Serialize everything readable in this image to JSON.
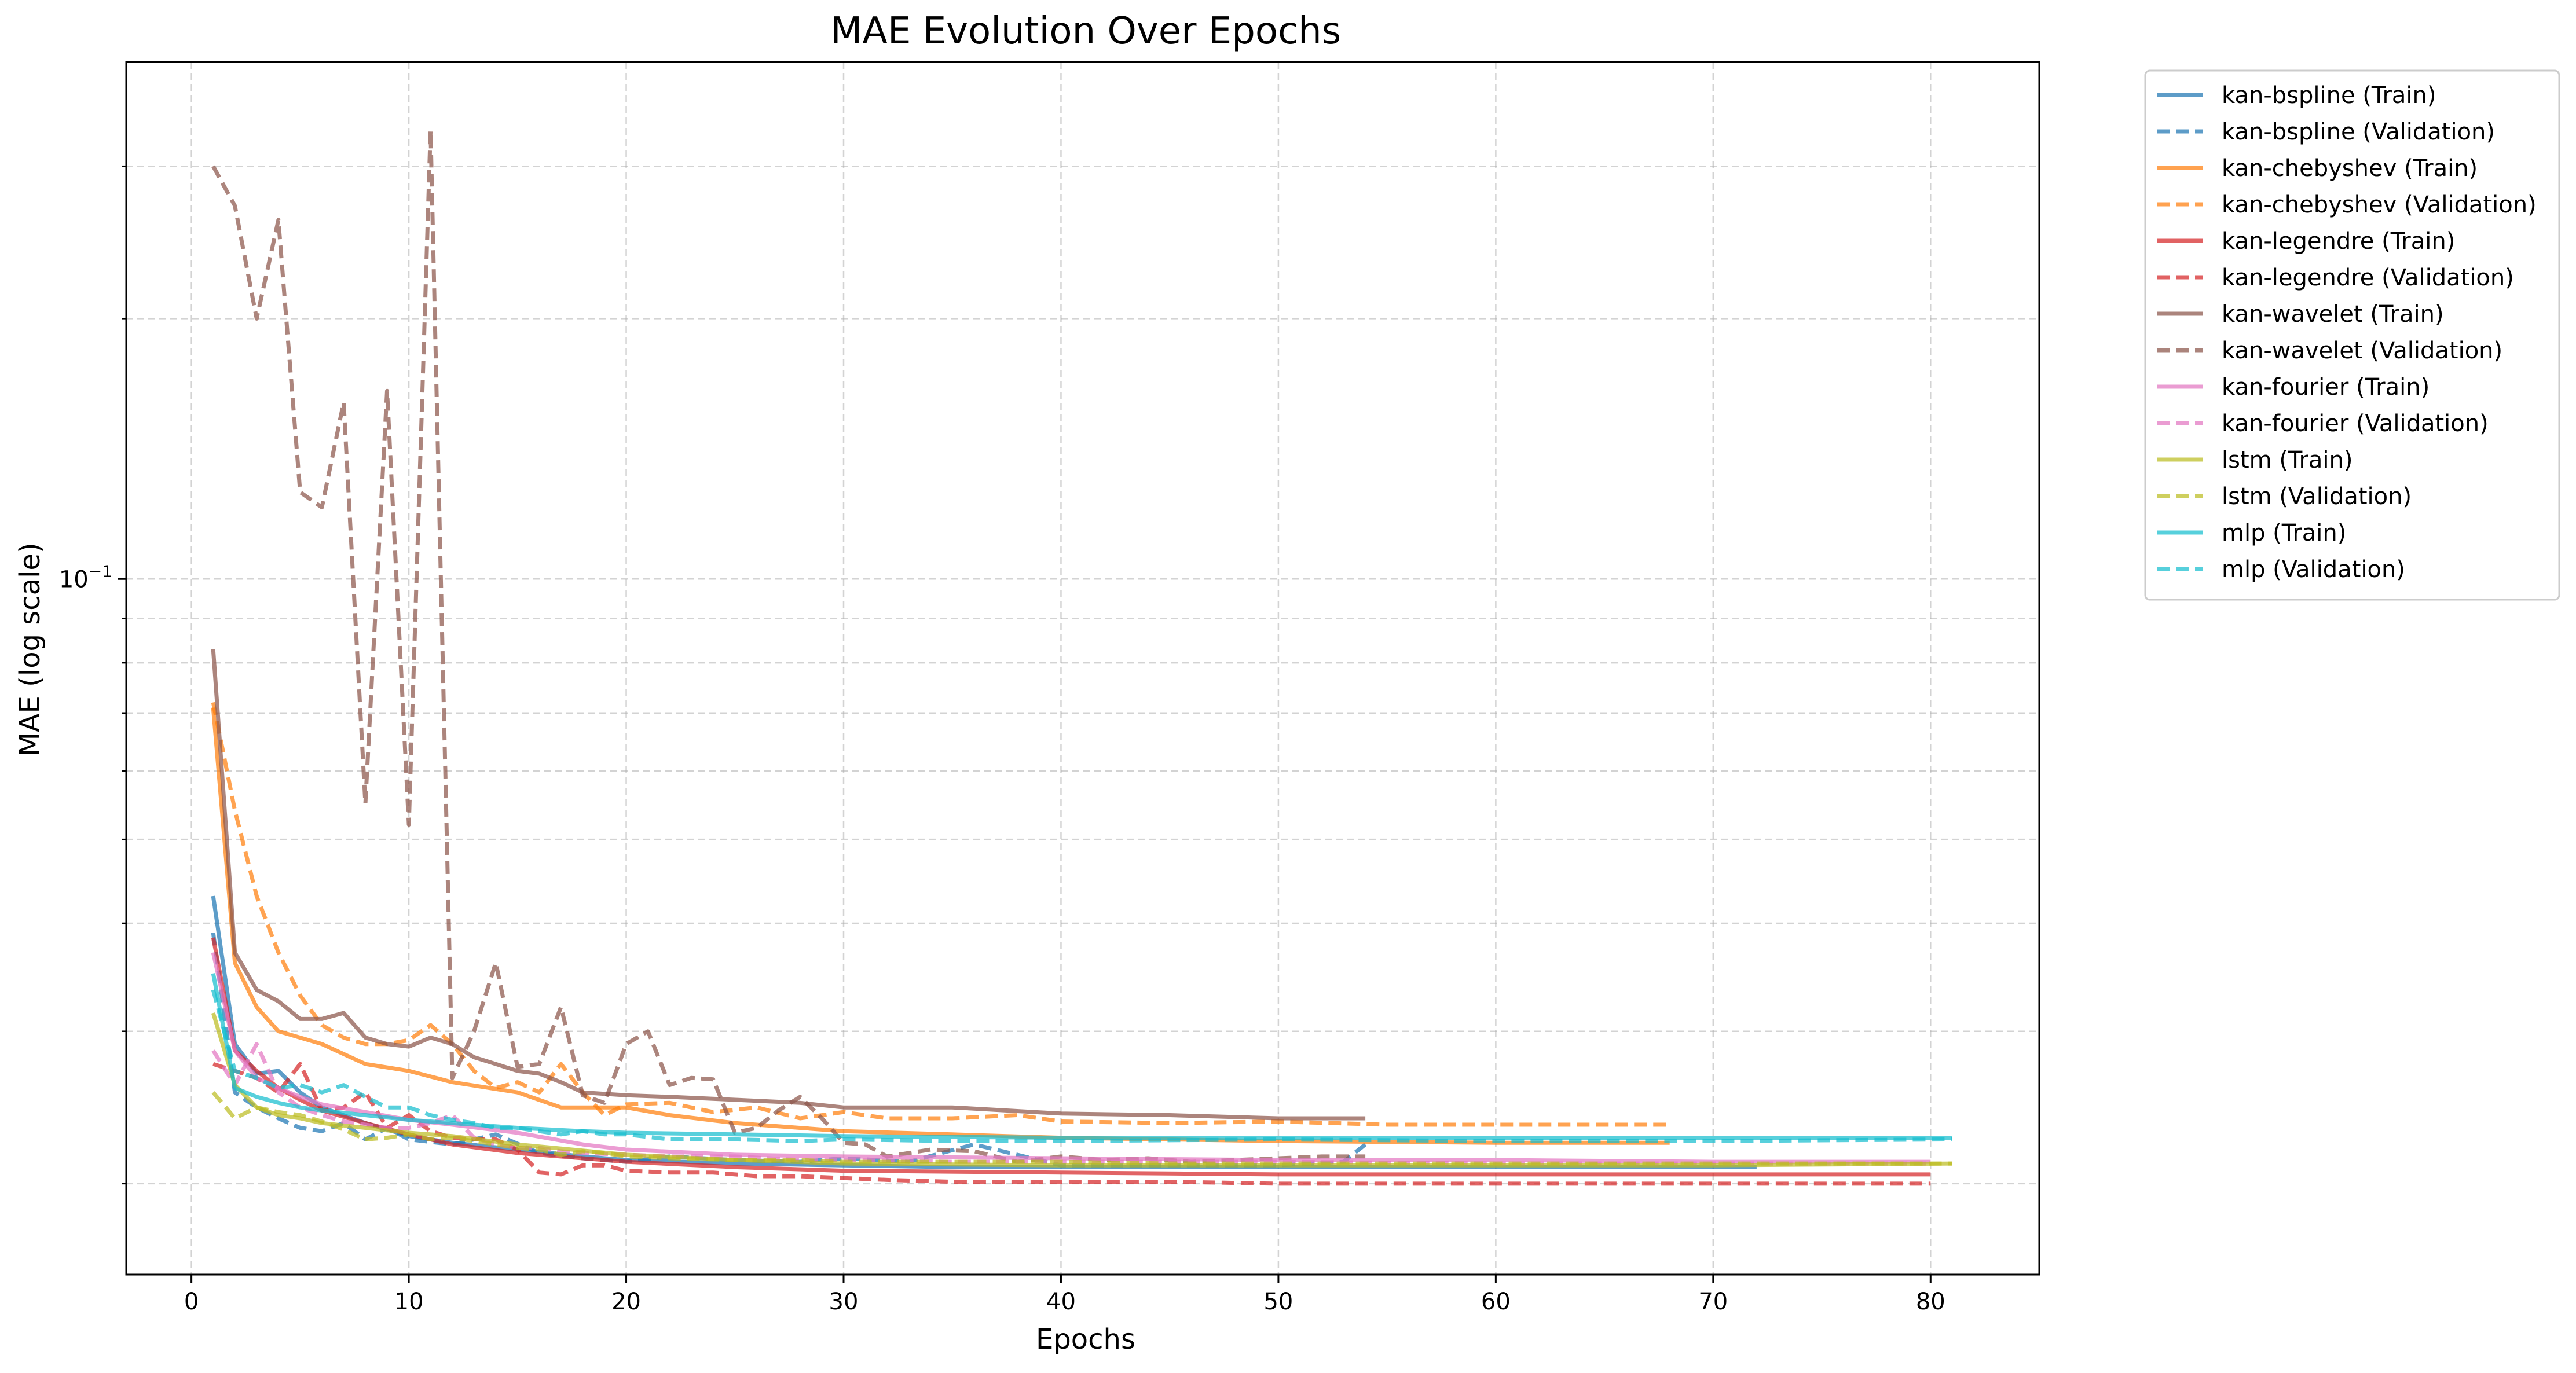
{
  "chart_data": {
    "type": "line",
    "title": "MAE Evolution Over Epochs",
    "xlabel": "Epochs",
    "ylabel": "MAE (log scale)",
    "yscale": "log",
    "xlim": [
      -3,
      85
    ],
    "ylim": [
      0.0157,
      0.396
    ],
    "xticks": [
      0,
      10,
      20,
      30,
      40,
      50,
      60,
      70,
      80
    ],
    "xtick_labels": [
      "0",
      "10",
      "20",
      "30",
      "40",
      "50",
      "60",
      "70",
      "80"
    ],
    "ytick_major": [
      0.1
    ],
    "ytick_major_labels": [
      "10^-1"
    ],
    "ytick_minor": [
      0.02,
      0.03,
      0.04,
      0.05,
      0.06,
      0.07,
      0.08,
      0.09,
      0.2,
      0.3
    ],
    "grid": true,
    "legend_position": "outside-right-top",
    "series": [
      {
        "name": "kan-bspline (Train)",
        "color": "#1f77b4",
        "dash": "solid",
        "x": [
          1,
          2,
          3,
          4,
          5,
          6,
          8,
          10,
          12,
          15,
          18,
          20,
          25,
          30,
          35,
          40,
          50,
          60,
          72
        ],
        "y": [
          0.043,
          0.029,
          0.0268,
          0.027,
          0.0255,
          0.0245,
          0.0235,
          0.0227,
          0.0223,
          0.0219,
          0.0215,
          0.0213,
          0.0211,
          0.021,
          0.0209,
          0.0209,
          0.0209,
          0.0209,
          0.0209
        ]
      },
      {
        "name": "kan-bspline (Validation)",
        "color": "#1f77b4",
        "dash": "dash",
        "x": [
          1,
          2,
          3,
          4,
          5,
          6,
          7,
          8,
          9,
          10,
          12,
          14,
          16,
          18,
          20,
          22,
          25,
          28,
          30,
          33,
          36,
          40,
          45,
          50,
          53,
          54
        ],
        "y": [
          0.039,
          0.0255,
          0.0245,
          0.0238,
          0.0232,
          0.023,
          0.0235,
          0.0225,
          0.0232,
          0.0225,
          0.0222,
          0.0228,
          0.0217,
          0.0214,
          0.0212,
          0.0215,
          0.0213,
          0.0212,
          0.0214,
          0.0212,
          0.0222,
          0.021,
          0.021,
          0.021,
          0.0212,
          0.0222
        ]
      },
      {
        "name": "kan-chebyshev (Train)",
        "color": "#ff7f0e",
        "dash": "solid",
        "x": [
          1,
          2,
          3,
          4,
          5,
          6,
          8,
          10,
          12,
          15,
          17,
          20,
          22,
          25,
          30,
          35,
          40,
          50,
          60,
          68
        ],
        "y": [
          0.071,
          0.036,
          0.032,
          0.03,
          0.0295,
          0.029,
          0.0275,
          0.027,
          0.0262,
          0.0255,
          0.0245,
          0.0245,
          0.024,
          0.0235,
          0.023,
          0.0228,
          0.0226,
          0.0224,
          0.0223,
          0.0223
        ]
      },
      {
        "name": "kan-chebyshev (Validation)",
        "color": "#ff7f0e",
        "dash": "dash",
        "x": [
          1,
          2,
          3,
          4,
          5,
          6,
          7,
          8,
          9,
          10,
          11,
          12,
          13,
          14,
          15,
          16,
          17,
          18,
          19,
          20,
          22,
          24,
          26,
          28,
          30,
          32,
          35,
          38,
          40,
          45,
          50,
          55,
          60,
          65,
          68
        ],
        "y": [
          0.072,
          0.054,
          0.043,
          0.037,
          0.033,
          0.0305,
          0.0295,
          0.029,
          0.029,
          0.0293,
          0.0305,
          0.029,
          0.027,
          0.0258,
          0.0262,
          0.0255,
          0.0275,
          0.0255,
          0.024,
          0.0247,
          0.0248,
          0.0242,
          0.0245,
          0.0238,
          0.0242,
          0.0238,
          0.0238,
          0.024,
          0.0236,
          0.0235,
          0.0236,
          0.0234,
          0.0234,
          0.0234,
          0.0234
        ]
      },
      {
        "name": "kan-legendre (Train)",
        "color": "#d62728",
        "dash": "solid",
        "x": [
          1,
          2,
          3,
          4,
          5,
          6,
          8,
          10,
          12,
          15,
          20,
          25,
          30,
          40,
          50,
          60,
          70,
          80
        ],
        "y": [
          0.0385,
          0.0285,
          0.027,
          0.0258,
          0.025,
          0.0243,
          0.0235,
          0.0228,
          0.0222,
          0.0217,
          0.0212,
          0.0209,
          0.0207,
          0.0206,
          0.0205,
          0.0205,
          0.0205,
          0.0205
        ]
      },
      {
        "name": "kan-legendre (Validation)",
        "color": "#d62728",
        "dash": "dash",
        "x": [
          1,
          2,
          3,
          4,
          5,
          6,
          7,
          8,
          9,
          10,
          11,
          12,
          13,
          14,
          15,
          16,
          17,
          18,
          19,
          20,
          22,
          24,
          26,
          28,
          30,
          32,
          35,
          40,
          45,
          50,
          60,
          70,
          80
        ],
        "y": [
          0.0275,
          0.027,
          0.0265,
          0.0255,
          0.0275,
          0.0243,
          0.0245,
          0.0255,
          0.0232,
          0.024,
          0.023,
          0.0226,
          0.0225,
          0.0225,
          0.0219,
          0.0206,
          0.0205,
          0.021,
          0.021,
          0.0207,
          0.0206,
          0.0206,
          0.0204,
          0.0204,
          0.0203,
          0.0202,
          0.0201,
          0.0201,
          0.0201,
          0.02,
          0.02,
          0.02,
          0.02
        ]
      },
      {
        "name": "kan-wavelet (Train)",
        "color": "#8c564b",
        "dash": "solid",
        "x": [
          1,
          2,
          3,
          4,
          5,
          6,
          7,
          8,
          9,
          10,
          11,
          12,
          13,
          14,
          15,
          16,
          17,
          18,
          20,
          22,
          25,
          28,
          30,
          35,
          40,
          45,
          50,
          54
        ],
        "y": [
          0.083,
          0.037,
          0.0335,
          0.0325,
          0.031,
          0.031,
          0.0315,
          0.0295,
          0.029,
          0.0288,
          0.0295,
          0.029,
          0.028,
          0.0275,
          0.027,
          0.0268,
          0.0262,
          0.0255,
          0.0253,
          0.0252,
          0.025,
          0.0248,
          0.0245,
          0.0245,
          0.0241,
          0.024,
          0.0238,
          0.0238
        ]
      },
      {
        "name": "kan-wavelet (Validation)",
        "color": "#8c564b",
        "dash": "dash",
        "x": [
          1,
          2,
          3,
          4,
          5,
          6,
          7,
          8,
          9,
          10,
          11,
          12,
          13,
          14,
          15,
          16,
          17,
          18,
          19,
          20,
          21,
          22,
          23,
          24,
          25,
          26,
          27,
          28,
          29,
          30,
          31,
          32,
          34,
          36,
          38,
          40,
          42,
          44,
          46,
          48,
          50,
          52,
          54
        ],
        "y": [
          0.3,
          0.27,
          0.2,
          0.26,
          0.126,
          0.121,
          0.16,
          0.055,
          0.165,
          0.052,
          0.33,
          0.0265,
          0.03,
          0.036,
          0.0273,
          0.0275,
          0.032,
          0.0253,
          0.0248,
          0.029,
          0.03,
          0.026,
          0.0265,
          0.0264,
          0.0229,
          0.0232,
          0.0243,
          0.0252,
          0.0238,
          0.0223,
          0.0222,
          0.0215,
          0.0219,
          0.0218,
          0.0212,
          0.0215,
          0.0213,
          0.0214,
          0.0212,
          0.0213,
          0.0214,
          0.0215,
          0.0215
        ]
      },
      {
        "name": "kan-fourier (Train)",
        "color": "#e377c2",
        "dash": "solid",
        "x": [
          1,
          2,
          3,
          4,
          5,
          6,
          8,
          10,
          12,
          15,
          18,
          20,
          25,
          30,
          40,
          50,
          60,
          70,
          80
        ],
        "y": [
          0.037,
          0.0285,
          0.0265,
          0.0258,
          0.0252,
          0.0247,
          0.0242,
          0.0237,
          0.0234,
          0.0229,
          0.0222,
          0.0219,
          0.0216,
          0.0215,
          0.0214,
          0.0213,
          0.0213,
          0.0212,
          0.0212
        ]
      },
      {
        "name": "kan-fourier (Validation)",
        "color": "#e377c2",
        "dash": "dash",
        "x": [
          1,
          2,
          3,
          4,
          5,
          6,
          7,
          8,
          9,
          10,
          11,
          12,
          13,
          14,
          15,
          16,
          17,
          18,
          20,
          22,
          25,
          28,
          30,
          35,
          40,
          50,
          60,
          70,
          80
        ],
        "y": [
          0.0285,
          0.026,
          0.029,
          0.0255,
          0.0245,
          0.024,
          0.0236,
          0.0234,
          0.0232,
          0.0232,
          0.0235,
          0.024,
          0.0226,
          0.0222,
          0.022,
          0.022,
          0.0218,
          0.0217,
          0.0216,
          0.0215,
          0.0215,
          0.0213,
          0.0213,
          0.0212,
          0.0212,
          0.0212,
          0.0211,
          0.0211,
          0.0211
        ]
      },
      {
        "name": "lstm (Train)",
        "color": "#bcbd22",
        "dash": "solid",
        "x": [
          1,
          2,
          3,
          4,
          5,
          6,
          8,
          10,
          12,
          15,
          20,
          25,
          30,
          40,
          50,
          60,
          70,
          81
        ],
        "y": [
          0.0315,
          0.026,
          0.0245,
          0.024,
          0.0238,
          0.0235,
          0.0232,
          0.0229,
          0.0227,
          0.0222,
          0.0216,
          0.0213,
          0.0211,
          0.021,
          0.021,
          0.021,
          0.021,
          0.0211
        ]
      },
      {
        "name": "lstm (Validation)",
        "color": "#bcbd22",
        "dash": "dash",
        "x": [
          1,
          2,
          3,
          4,
          5,
          6,
          7,
          8,
          9,
          10,
          11,
          12,
          13,
          14,
          15,
          16,
          17,
          18,
          19,
          20,
          22,
          25,
          28,
          30,
          35,
          40,
          45,
          50,
          60,
          70,
          81
        ],
        "y": [
          0.0255,
          0.0238,
          0.0245,
          0.0242,
          0.024,
          0.0236,
          0.0231,
          0.0225,
          0.0226,
          0.0228,
          0.0225,
          0.0226,
          0.0224,
          0.0222,
          0.022,
          0.0219,
          0.0216,
          0.0218,
          0.0217,
          0.0215,
          0.0214,
          0.0213,
          0.0213,
          0.0212,
          0.0212,
          0.0212,
          0.0211,
          0.0211,
          0.0211,
          0.0211,
          0.0211
        ]
      },
      {
        "name": "mlp (Train)",
        "color": "#17becf",
        "dash": "solid",
        "x": [
          1,
          2,
          3,
          4,
          5,
          6,
          8,
          10,
          12,
          15,
          18,
          20,
          25,
          30,
          40,
          50,
          60,
          70,
          81
        ],
        "y": [
          0.035,
          0.0258,
          0.0252,
          0.0248,
          0.0245,
          0.0243,
          0.024,
          0.0237,
          0.0235,
          0.0232,
          0.023,
          0.0229,
          0.0228,
          0.0227,
          0.0226,
          0.0226,
          0.0226,
          0.0226,
          0.0226
        ]
      },
      {
        "name": "mlp (Validation)",
        "color": "#17becf",
        "dash": "dash",
        "x": [
          1,
          2,
          3,
          4,
          5,
          6,
          7,
          8,
          9,
          10,
          11,
          12,
          13,
          14,
          15,
          16,
          17,
          18,
          19,
          20,
          22,
          25,
          28,
          30,
          35,
          40,
          50,
          60,
          70,
          81
        ],
        "y": [
          0.0335,
          0.027,
          0.0265,
          0.0258,
          0.026,
          0.0255,
          0.026,
          0.0252,
          0.0245,
          0.0245,
          0.024,
          0.0237,
          0.0235,
          0.0232,
          0.0232,
          0.023,
          0.0228,
          0.023,
          0.0228,
          0.0228,
          0.0225,
          0.0225,
          0.0224,
          0.0225,
          0.0224,
          0.0224,
          0.0225,
          0.0224,
          0.0224,
          0.0225
        ]
      }
    ]
  }
}
